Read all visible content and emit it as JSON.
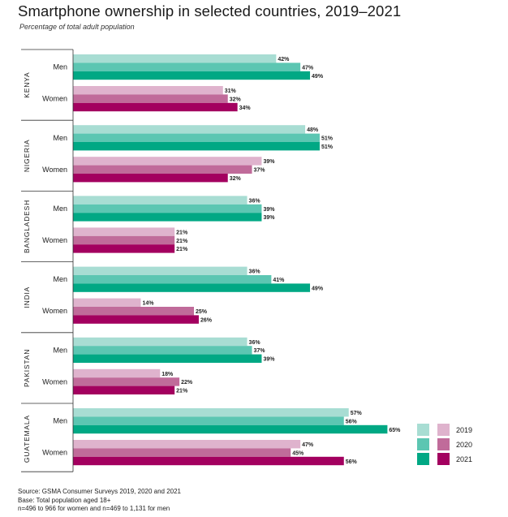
{
  "title": "Smartphone ownership in selected countries, 2019–2021",
  "subtitle": "Percentage of total adult population",
  "footer": {
    "source": "Source: GSMA Consumer Surveys 2019, 2020 and 2021",
    "base": "Base: Total population aged 18+",
    "n": "n=496 to 966 for women and n=469 to 1,131 for men"
  },
  "colors": {
    "men": [
      "#a8ddd3",
      "#5cc6b2",
      "#00a884"
    ],
    "women": [
      "#dfb3cd",
      "#c06b9a",
      "#a3005f"
    ]
  },
  "chart_data": {
    "type": "bar",
    "orientation": "horizontal",
    "title": "Smartphone ownership in selected countries, 2019–2021",
    "unit": "%",
    "series_names": [
      "2019",
      "2020",
      "2021"
    ],
    "legend": {
      "labels": [
        "2019",
        "2020",
        "2021"
      ],
      "position": "bottom-right"
    },
    "xlim": [
      0,
      100
    ],
    "groups": [
      {
        "country": "KENYA",
        "rows": [
          {
            "label": "Men",
            "values": [
              42,
              47,
              49
            ],
            "labels": [
              "42%",
              "47%",
              "49%"
            ]
          },
          {
            "label": "Women",
            "values": [
              31,
              32,
              34
            ],
            "labels": [
              "31%",
              "32%",
              "34%"
            ]
          }
        ]
      },
      {
        "country": "NIGERIA",
        "rows": [
          {
            "label": "Men",
            "values": [
              48,
              51,
              51
            ],
            "labels": [
              "48%",
              "51%",
              "51%"
            ]
          },
          {
            "label": "Women",
            "values": [
              39,
              37,
              32
            ],
            "labels": [
              "39%",
              "37%",
              "32%"
            ]
          }
        ]
      },
      {
        "country": "BANGLADESH",
        "rows": [
          {
            "label": "Men",
            "values": [
              36,
              39,
              39
            ],
            "labels": [
              "36%",
              "39%",
              "39%"
            ]
          },
          {
            "label": "Women",
            "values": [
              21,
              21,
              21
            ],
            "labels": [
              "21%",
              "21%",
              "21%"
            ]
          }
        ]
      },
      {
        "country": "INDIA",
        "rows": [
          {
            "label": "Men",
            "values": [
              36,
              41,
              49
            ],
            "labels": [
              "36%",
              "41%",
              "49%"
            ]
          },
          {
            "label": "Women",
            "values": [
              14,
              25,
              26
            ],
            "labels": [
              "14%",
              "25%",
              "26%"
            ]
          }
        ]
      },
      {
        "country": "PAKISTAN",
        "rows": [
          {
            "label": "Men",
            "values": [
              36,
              37,
              39
            ],
            "labels": [
              "36%",
              "37%",
              "39%"
            ]
          },
          {
            "label": "Women",
            "values": [
              18,
              22,
              21
            ],
            "labels": [
              "18%",
              "22%",
              "21%"
            ]
          }
        ]
      },
      {
        "country": "GUATEMALA",
        "rows": [
          {
            "label": "Men",
            "values": [
              57,
              56,
              65
            ],
            "labels": [
              "57%",
              "56%",
              "65%"
            ]
          },
          {
            "label": "Women",
            "values": [
              47,
              45,
              56
            ],
            "labels": [
              "47%",
              "45%",
              "56%"
            ]
          }
        ]
      }
    ]
  }
}
